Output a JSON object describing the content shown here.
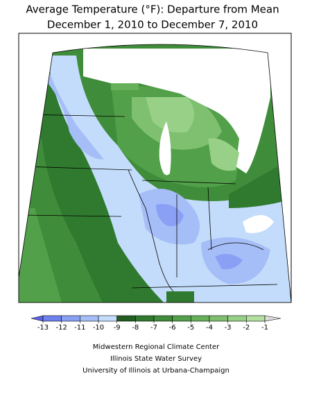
{
  "title": [
    "Average Temperature (°F): Departure from Mean",
    "December 1, 2010 to December 7, 2010"
  ],
  "legend": {
    "ticks": [
      -13,
      -12,
      -11,
      -10,
      -9,
      -8,
      -7,
      -6,
      -5,
      -4,
      -3,
      -2,
      -1
    ],
    "colors": [
      "#5a64e6",
      "#6e82ee",
      "#8aa0f5",
      "#a6bef8",
      "#c4dcfb",
      "#225e22",
      "#2f7a2f",
      "#3f8c3a",
      "#52a049",
      "#66b05a",
      "#7fc070",
      "#98d088",
      "#b2e0a0",
      "#dcdcdc"
    ]
  },
  "credits": [
    "Midwestern Regional Climate Center",
    "Illinois State Water Survey",
    "University of Illinois at Urbana-Champaign"
  ]
}
